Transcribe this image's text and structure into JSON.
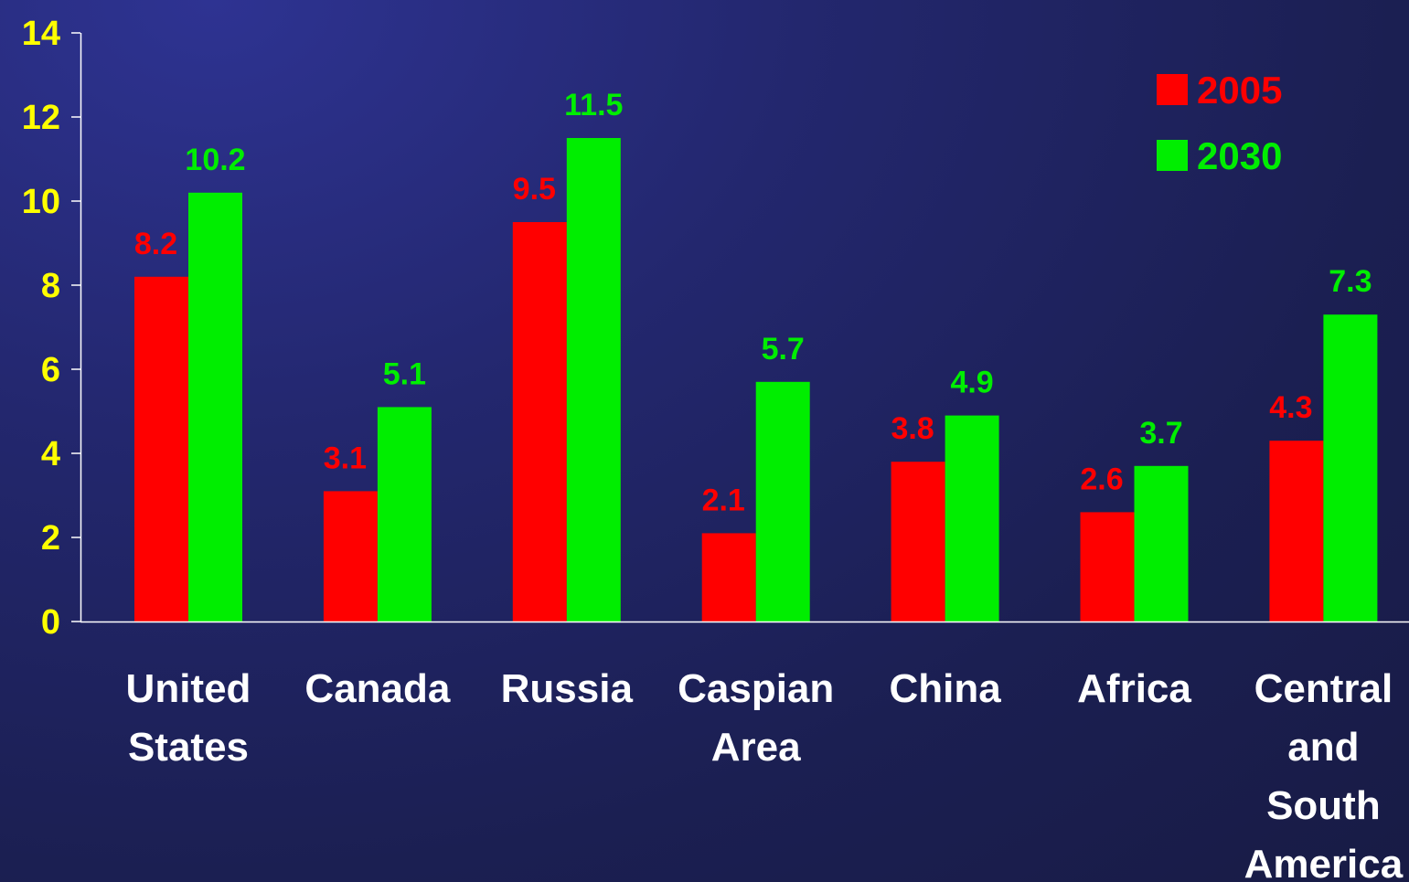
{
  "chart_data": {
    "type": "bar",
    "title": "",
    "xlabel": "",
    "ylabel": "",
    "ylim": [
      0,
      14
    ],
    "yticks": [
      "0",
      "2",
      "4",
      "6",
      "8",
      "10",
      "12",
      "14"
    ],
    "categories": [
      [
        "United",
        "States"
      ],
      [
        "Canada"
      ],
      [
        "Russia"
      ],
      [
        "Caspian",
        "Area"
      ],
      [
        "China"
      ],
      [
        "Africa"
      ],
      [
        "Central",
        "and",
        "South",
        "America"
      ]
    ],
    "series": [
      {
        "name": "2005",
        "color": "#ff0000",
        "values": [
          8.2,
          3.1,
          9.5,
          2.1,
          3.8,
          2.6,
          4.3
        ]
      },
      {
        "name": "2030",
        "color": "#00ee00",
        "values": [
          10.2,
          5.1,
          11.5,
          5.7,
          4.9,
          3.7,
          7.3
        ]
      }
    ],
    "value_labels": [
      [
        "8.2",
        "3.1",
        "9.5",
        "2.1",
        "3.8",
        "2.6",
        "4.3"
      ],
      [
        "10.2",
        "5.1",
        "11.5",
        "5.7",
        "4.9",
        "3.7",
        "7.3"
      ]
    ],
    "legend_position": "top-right",
    "grid": false,
    "colors": {
      "axis_tick_labels": "#ffff00",
      "category_labels": "#ffffff",
      "axis_lines": "#ffffff"
    }
  }
}
